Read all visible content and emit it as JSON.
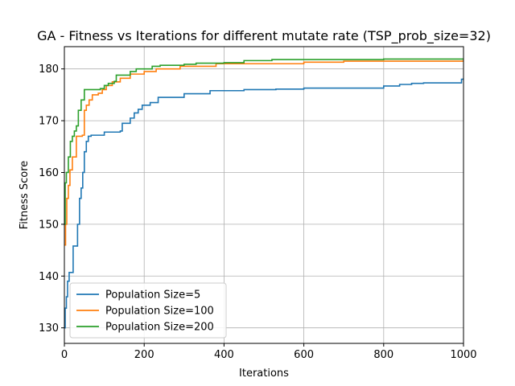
{
  "chart_data": {
    "type": "line",
    "title": "GA - Fitness vs Iterations for different mutate rate (TSP_prob_size=32)",
    "xlabel": "Iterations",
    "ylabel": "Fitness Score",
    "xlim": [
      0,
      1000
    ],
    "ylim": [
      127,
      184.3
    ],
    "xticks": [
      0,
      200,
      400,
      600,
      800,
      1000
    ],
    "yticks": [
      130,
      140,
      150,
      160,
      170,
      180
    ],
    "grid": true,
    "legend_position": "lower-left",
    "step": true,
    "series": [
      {
        "name": "Population Size=5",
        "color": "#1f77b4",
        "points": [
          [
            0,
            130
          ],
          [
            2,
            133.8
          ],
          [
            5,
            136
          ],
          [
            8,
            139
          ],
          [
            12,
            140.7
          ],
          [
            22,
            145.8
          ],
          [
            33,
            150
          ],
          [
            38,
            155
          ],
          [
            42,
            157
          ],
          [
            46,
            160
          ],
          [
            50,
            164
          ],
          [
            55,
            166
          ],
          [
            60,
            167
          ],
          [
            67,
            167.2
          ],
          [
            100,
            167.8
          ],
          [
            140,
            168
          ],
          [
            145,
            169.5
          ],
          [
            165,
            170.5
          ],
          [
            175,
            171.5
          ],
          [
            185,
            172.2
          ],
          [
            195,
            173
          ],
          [
            215,
            173.5
          ],
          [
            235,
            174.5
          ],
          [
            300,
            175.2
          ],
          [
            365,
            175.8
          ],
          [
            450,
            176
          ],
          [
            530,
            176.1
          ],
          [
            600,
            176.3
          ],
          [
            800,
            176.7
          ],
          [
            840,
            177
          ],
          [
            870,
            177.2
          ],
          [
            900,
            177.3
          ],
          [
            995,
            178
          ],
          [
            1000,
            178.2
          ]
        ]
      },
      {
        "name": "Population Size=100",
        "color": "#ff7f0e",
        "points": [
          [
            0,
            146
          ],
          [
            3,
            150
          ],
          [
            6,
            155
          ],
          [
            10,
            157.5
          ],
          [
            14,
            160.5
          ],
          [
            20,
            163
          ],
          [
            30,
            167
          ],
          [
            45,
            167.2
          ],
          [
            50,
            172
          ],
          [
            55,
            173
          ],
          [
            62,
            174
          ],
          [
            70,
            175
          ],
          [
            85,
            175.3
          ],
          [
            95,
            176
          ],
          [
            105,
            176.8
          ],
          [
            120,
            177.5
          ],
          [
            140,
            178.2
          ],
          [
            165,
            179
          ],
          [
            200,
            179.5
          ],
          [
            230,
            180
          ],
          [
            290,
            180.5
          ],
          [
            380,
            181
          ],
          [
            600,
            181.3
          ],
          [
            700,
            181.5
          ],
          [
            1000,
            181.7
          ]
        ]
      },
      {
        "name": "Population Size=200",
        "color": "#2ca02c",
        "points": [
          [
            0,
            150
          ],
          [
            2,
            158
          ],
          [
            5,
            160
          ],
          [
            10,
            163
          ],
          [
            15,
            166
          ],
          [
            20,
            167
          ],
          [
            25,
            168
          ],
          [
            30,
            169
          ],
          [
            35,
            172
          ],
          [
            42,
            174
          ],
          [
            50,
            176
          ],
          [
            90,
            176.2
          ],
          [
            100,
            176.8
          ],
          [
            110,
            177.2
          ],
          [
            125,
            177.6
          ],
          [
            130,
            178.8
          ],
          [
            165,
            179.5
          ],
          [
            180,
            180
          ],
          [
            220,
            180.5
          ],
          [
            240,
            180.7
          ],
          [
            300,
            180.9
          ],
          [
            330,
            181.1
          ],
          [
            400,
            181.2
          ],
          [
            450,
            181.6
          ],
          [
            520,
            181.8
          ],
          [
            800,
            181.9
          ],
          [
            1000,
            181.9
          ]
        ]
      }
    ]
  }
}
